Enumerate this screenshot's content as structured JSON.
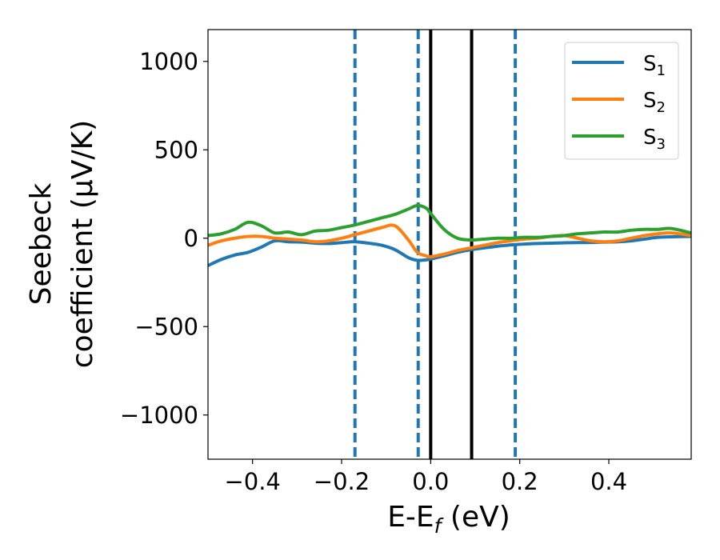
{
  "chart_data": {
    "type": "line",
    "xlabel": {
      "main": "E-E",
      "sub": "f",
      "tail": " (eV)"
    },
    "ylabel": {
      "line1": "Seebeck",
      "line2": "coefficient  (μV/K)"
    },
    "xlim": [
      -0.5,
      0.585
    ],
    "ylim": [
      -1250,
      1180
    ],
    "xticks": [
      -0.4,
      -0.2,
      0.0,
      0.2,
      0.4
    ],
    "xtick_labels": [
      "−0.4",
      "−0.2",
      "0.0",
      "0.2",
      "0.4"
    ],
    "yticks": [
      -1000,
      -500,
      0,
      500,
      1000
    ],
    "ytick_labels": [
      "−1000",
      "−500",
      "0",
      "500",
      "1000"
    ],
    "grid": false,
    "legend_position": "top-right",
    "series": [
      {
        "name": "S",
        "sub": "1",
        "color": "#1f77b4",
        "x": [
          -0.5,
          -0.47,
          -0.44,
          -0.41,
          -0.38,
          -0.35,
          -0.32,
          -0.29,
          -0.26,
          -0.23,
          -0.2,
          -0.17,
          -0.14,
          -0.11,
          -0.08,
          -0.05,
          -0.03,
          -0.01,
          0.0,
          0.03,
          0.06,
          0.09,
          0.12,
          0.15,
          0.18,
          0.21,
          0.24,
          0.27,
          0.3,
          0.33,
          0.36,
          0.39,
          0.42,
          0.45,
          0.48,
          0.51,
          0.54,
          0.585
        ],
        "y": [
          -155,
          -120,
          -95,
          -80,
          -50,
          -15,
          -20,
          -22,
          -28,
          -30,
          -25,
          -20,
          -28,
          -40,
          -65,
          -110,
          -125,
          -122,
          -118,
          -100,
          -80,
          -65,
          -55,
          -45,
          -38,
          -33,
          -30,
          -28,
          -26,
          -25,
          -24,
          -22,
          -20,
          -15,
          -5,
          5,
          8,
          10
        ]
      },
      {
        "name": "S",
        "sub": "2",
        "color": "#ff7f0e",
        "x": [
          -0.5,
          -0.47,
          -0.44,
          -0.41,
          -0.38,
          -0.35,
          -0.32,
          -0.29,
          -0.26,
          -0.23,
          -0.2,
          -0.17,
          -0.14,
          -0.11,
          -0.08,
          -0.05,
          -0.03,
          -0.01,
          0.0,
          0.03,
          0.06,
          0.09,
          0.12,
          0.15,
          0.18,
          0.21,
          0.24,
          0.27,
          0.3,
          0.33,
          0.36,
          0.39,
          0.42,
          0.45,
          0.48,
          0.51,
          0.54,
          0.585
        ],
        "y": [
          -40,
          -15,
          0,
          10,
          10,
          0,
          -5,
          -10,
          -20,
          -15,
          0,
          20,
          40,
          60,
          70,
          -10,
          -80,
          -100,
          -105,
          -90,
          -70,
          -55,
          -40,
          -25,
          -15,
          -5,
          0,
          10,
          15,
          0,
          -15,
          -20,
          -15,
          0,
          15,
          25,
          30,
          15
        ]
      },
      {
        "name": "S",
        "sub": "3",
        "color": "#2ca02c",
        "x": [
          -0.5,
          -0.47,
          -0.44,
          -0.41,
          -0.38,
          -0.35,
          -0.32,
          -0.29,
          -0.26,
          -0.23,
          -0.2,
          -0.17,
          -0.14,
          -0.11,
          -0.08,
          -0.05,
          -0.03,
          -0.01,
          0.0,
          0.03,
          0.06,
          0.09,
          0.12,
          0.15,
          0.18,
          0.21,
          0.24,
          0.27,
          0.3,
          0.33,
          0.36,
          0.39,
          0.42,
          0.45,
          0.48,
          0.51,
          0.54,
          0.585
        ],
        "y": [
          15,
          25,
          50,
          90,
          70,
          30,
          35,
          20,
          40,
          45,
          60,
          75,
          95,
          115,
          135,
          165,
          185,
          170,
          140,
          50,
          0,
          -10,
          -5,
          0,
          0,
          5,
          5,
          10,
          15,
          25,
          30,
          35,
          35,
          45,
          50,
          50,
          55,
          30
        ]
      }
    ],
    "vertical_lines": [
      {
        "x": -0.17,
        "style": "dashed",
        "color": "#1f77b4"
      },
      {
        "x": -0.028,
        "style": "dashed",
        "color": "#1f77b4"
      },
      {
        "x": 0.0,
        "style": "solid",
        "color": "#000000"
      },
      {
        "x": 0.092,
        "style": "solid",
        "color": "#000000"
      },
      {
        "x": 0.19,
        "style": "dashed",
        "color": "#1f77b4"
      }
    ]
  }
}
